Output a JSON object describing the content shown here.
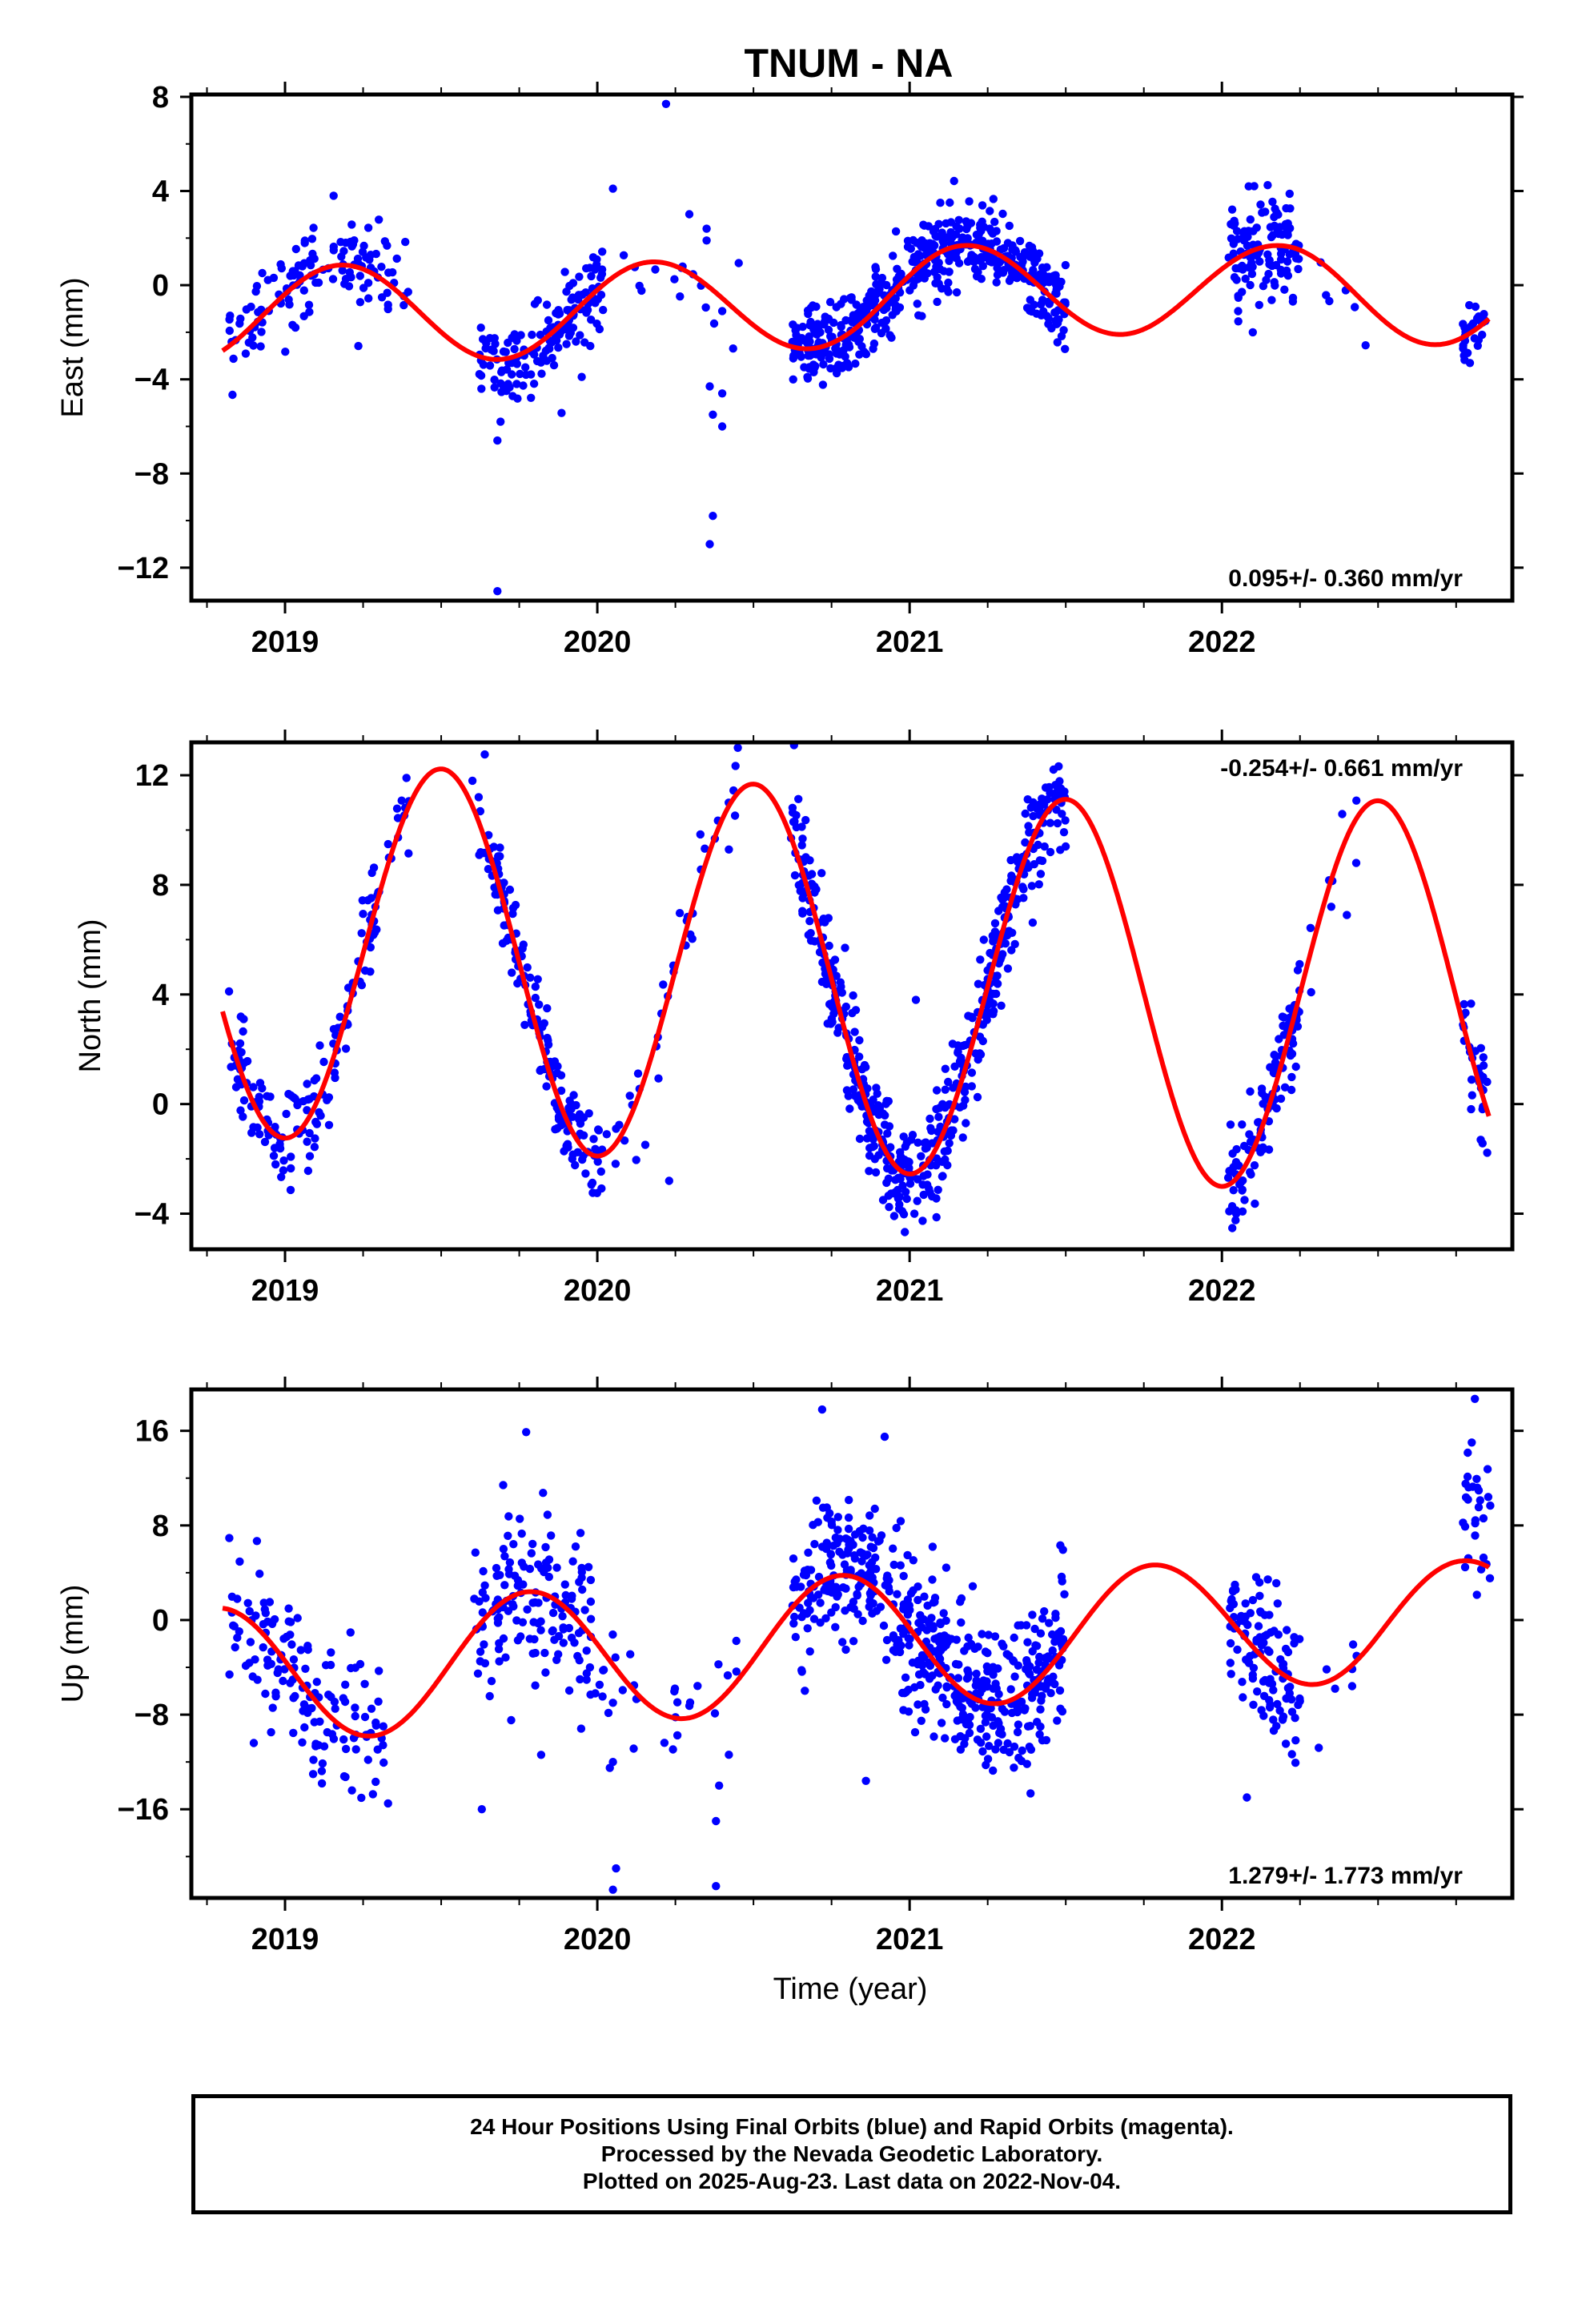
{
  "title": "TNUM - NA",
  "colors": {
    "final_orbits": "#0000ff",
    "fit_line": "#ff0000",
    "frame": "#000000"
  },
  "chart_data": [
    {
      "type": "scatter",
      "ylabel": "East (mm)",
      "xlabel": "",
      "xlim": [
        2018.7,
        2022.93
      ],
      "ylim": [
        -13.4,
        8.1
      ],
      "yticks": [
        8,
        4,
        0,
        -4,
        -8,
        -12
      ],
      "yticklabels": [
        "8",
        "4",
        "0",
        "−4",
        "−8",
        "−12"
      ],
      "xticks": [
        2019,
        2020,
        2021,
        2022
      ],
      "xticklabels": [
        "2019",
        "2020",
        "2021",
        "2022"
      ],
      "rate_label": "0.095+/- 0.360 mm/yr",
      "rate_position": "bottom-right",
      "fit_model": {
        "base": 0,
        "trend": 0.095,
        "amp": 2.05,
        "phase_doy": 0.18,
        "bias_knots": [
          [
            2018.8,
            -1.1
          ],
          [
            2019.5,
            -1.0
          ],
          [
            2020.2,
            -1.0
          ],
          [
            2020.8,
            -0.6
          ],
          [
            2021.15,
            -0.4
          ],
          [
            2021.8,
            -0.1
          ],
          [
            2022.2,
            -0.5
          ],
          [
            2022.9,
            -0.7
          ]
        ]
      },
      "scatter_segments": [
        {
          "x": [
            2018.82,
            2019.4
          ],
          "center_offset": 0.3,
          "spread": 0.9,
          "n": 130
        },
        {
          "x": [
            2019.62,
            2020.02
          ],
          "center_offset": 0.0,
          "spread": 0.9,
          "n": 160
        },
        {
          "x": [
            2020.05,
            2020.48
          ],
          "center_offset": -0.3,
          "spread": 1.0,
          "n": 16
        },
        {
          "x": [
            2020.62,
            2021.5
          ],
          "center_offset": 0.1,
          "spread": 0.85,
          "n": 520
        },
        {
          "x": [
            2022.02,
            2022.25
          ],
          "center_offset": 0.0,
          "spread": 0.9,
          "n": 120
        },
        {
          "x": [
            2022.3,
            2022.48
          ],
          "center_offset": -0.5,
          "spread": 0.8,
          "n": 6
        },
        {
          "x": [
            2022.77,
            2022.85
          ],
          "center_offset": -0.1,
          "spread": 0.7,
          "n": 30
        }
      ],
      "outliers": [
        [
          2019.68,
          -13.0
        ],
        [
          2019.68,
          -6.6
        ],
        [
          2019.69,
          -5.8
        ],
        [
          2020.22,
          7.7
        ],
        [
          2020.36,
          -11.0
        ],
        [
          2020.37,
          -9.8
        ],
        [
          2020.37,
          -5.5
        ],
        [
          2020.4,
          -6.0
        ],
        [
          2020.36,
          -4.3
        ],
        [
          2020.4,
          -4.6
        ],
        [
          2020.05,
          4.1
        ],
        [
          2020.35,
          2.4
        ],
        [
          2020.35,
          1.9
        ],
        [
          2020.4,
          -1.1
        ],
        [
          2019.95,
          -3.9
        ]
      ]
    },
    {
      "type": "scatter",
      "ylabel": "North (mm)",
      "xlabel": "",
      "xlim": [
        2018.7,
        2022.93
      ],
      "ylim": [
        -5.3,
        13.2
      ],
      "yticks": [
        12,
        8,
        4,
        0,
        -4
      ],
      "yticklabels": [
        "12",
        "8",
        "4",
        "0",
        "−4"
      ],
      "xticks": [
        2019,
        2020,
        2021,
        2022
      ],
      "xticklabels": [
        "2019",
        "2020",
        "2021",
        "2022"
      ],
      "rate_label": "-0.254+/- 0.661 mm/yr",
      "rate_position": "top-right",
      "fit_model": {
        "base": 4.8,
        "trend": -0.254,
        "amp": 6.9,
        "phase_doy": 0.5,
        "bias_knots": [
          [
            2018.8,
            0.2
          ],
          [
            2019.0,
            0.4
          ],
          [
            2019.5,
            0.2
          ],
          [
            2020.0,
            0.0
          ],
          [
            2020.5,
            -0.1
          ],
          [
            2021.0,
            -0.4
          ],
          [
            2021.5,
            -0.4
          ],
          [
            2022.0,
            -0.6
          ],
          [
            2022.5,
            -0.2
          ],
          [
            2022.9,
            -0.5
          ]
        ]
      },
      "scatter_segments": [
        {
          "x": [
            2018.82,
            2019.32
          ],
          "center_offset": 0.0,
          "spread": 0.9,
          "n": 140
        },
        {
          "x": [
            2019.32,
            2019.4
          ],
          "center_offset": 0.4,
          "spread": 0.8,
          "n": 12
        },
        {
          "x": [
            2019.62,
            2020.02
          ],
          "center_offset": 0.0,
          "spread": 0.9,
          "n": 160
        },
        {
          "x": [
            2020.05,
            2020.3
          ],
          "center_offset": 0.0,
          "spread": 0.8,
          "n": 22
        },
        {
          "x": [
            2020.3,
            2020.45
          ],
          "center_offset": 0.3,
          "spread": 0.8,
          "n": 12
        },
        {
          "x": [
            2020.62,
            2021.5
          ],
          "center_offset": 0.0,
          "spread": 0.95,
          "n": 520
        },
        {
          "x": [
            2022.02,
            2022.25
          ],
          "center_offset": 0.0,
          "spread": 0.9,
          "n": 110
        },
        {
          "x": [
            2022.27,
            2022.48
          ],
          "center_offset": 0.2,
          "spread": 0.6,
          "n": 6
        },
        {
          "x": [
            2022.77,
            2022.85
          ],
          "center_offset": 0.2,
          "spread": 0.9,
          "n": 30
        }
      ],
      "outliers": [
        [
          2020.03,
          -1.1
        ],
        [
          2020.06,
          -0.9
        ],
        [
          2020.23,
          -2.8
        ],
        [
          2020.45,
          13.0
        ],
        [
          2020.63,
          13.1
        ],
        [
          2021.02,
          3.8
        ],
        [
          2019.6,
          11.8
        ],
        [
          2019.62,
          11.2
        ],
        [
          2022.43,
          8.8
        ],
        [
          2022.4,
          6.9
        ],
        [
          2022.35,
          7.2
        ]
      ]
    },
    {
      "type": "scatter",
      "ylabel": "Up (mm)",
      "xlabel": "Time (year)",
      "xlim": [
        2018.7,
        2022.93
      ],
      "ylim": [
        -23.5,
        19.5
      ],
      "yticks": [
        16,
        8,
        0,
        -8,
        -16
      ],
      "yticklabels": [
        "16",
        "8",
        "0",
        "−8",
        "−16"
      ],
      "xticks": [
        2019,
        2020,
        2021,
        2022
      ],
      "xticklabels": [
        "2019",
        "2020",
        "2021",
        "2022"
      ],
      "rate_label": "1.279+/- 1.773 mm/yr",
      "rate_position": "bottom-right",
      "fit_model": {
        "base": -2.0,
        "trend": 1.279,
        "amp": 5.3,
        "phase_doy": 0.78,
        "bias_knots": [
          [
            2018.8,
            0.3
          ],
          [
            2019.2,
            -0.6
          ],
          [
            2019.8,
            0.4
          ],
          [
            2020.2,
            -0.4
          ],
          [
            2020.8,
            0.5
          ],
          [
            2021.2,
            -0.4
          ],
          [
            2021.8,
            0.1
          ],
          [
            2022.1,
            0.3
          ],
          [
            2022.5,
            -0.5
          ],
          [
            2022.9,
            -0.9
          ]
        ]
      },
      "scatter_segments": [
        {
          "x": [
            2018.82,
            2019.32
          ],
          "center_offset": 0.0,
          "spread": 3.5,
          "n": 140
        },
        {
          "x": [
            2019.6,
            2020.0
          ],
          "center_offset": 0.0,
          "spread": 3.6,
          "n": 150
        },
        {
          "x": [
            2020.0,
            2020.48
          ],
          "center_offset": -1.5,
          "spread": 3.5,
          "n": 30
        },
        {
          "x": [
            2020.62,
            2021.5
          ],
          "center_offset": 0.3,
          "spread": 3.2,
          "n": 520
        },
        {
          "x": [
            2022.02,
            2022.25
          ],
          "center_offset": 0.0,
          "spread": 3.2,
          "n": 110
        },
        {
          "x": [
            2022.3,
            2022.45
          ],
          "center_offset": 0.0,
          "spread": 2.0,
          "n": 6
        },
        {
          "x": [
            2022.77,
            2022.86
          ],
          "center_offset": 4.5,
          "spread": 3.5,
          "n": 30
        }
      ],
      "outliers": [
        [
          2020.05,
          -22.8
        ],
        [
          2020.06,
          -21.0
        ],
        [
          2020.38,
          -22.5
        ],
        [
          2020.38,
          -17.0
        ],
        [
          2020.39,
          -14.0
        ],
        [
          2019.63,
          -16.0
        ],
        [
          2019.33,
          -15.5
        ],
        [
          2020.72,
          17.8
        ],
        [
          2020.92,
          15.5
        ],
        [
          2022.08,
          -15.0
        ],
        [
          2020.05,
          -12.0
        ],
        [
          2020.04,
          -12.5
        ],
        [
          2022.81,
          18.7
        ],
        [
          2019.82,
          -11.4
        ],
        [
          2020.86,
          -13.6
        ],
        [
          2022.31,
          -10.8
        ],
        [
          2018.9,
          -10.4
        ]
      ]
    }
  ],
  "footer": {
    "line1": "24 Hour Positions Using Final Orbits (blue) and Rapid Orbits (magenta).",
    "line2": "Processed by the Nevada Geodetic Laboratory.",
    "line3": "Plotted on 2025-Aug-23. Last data on 2022-Nov-04."
  }
}
